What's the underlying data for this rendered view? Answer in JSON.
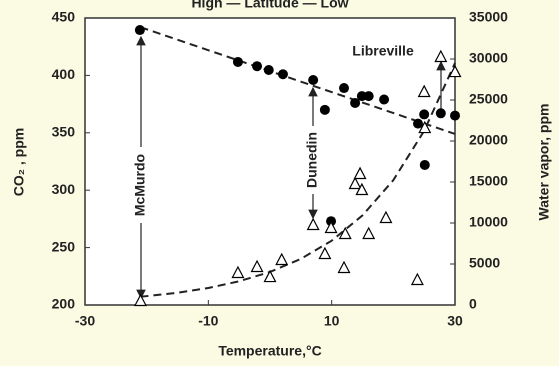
{
  "chart_data": {
    "type": "scatter",
    "title": "High — Latitude — Low",
    "x_label": "Temperature,°C",
    "y_label": "CO₂ , ppm",
    "y2_label": "Water vapor, ppm",
    "xlim": [
      -30,
      30
    ],
    "xticks": [
      -30,
      -10,
      10,
      30
    ],
    "ylim": [
      200,
      450
    ],
    "yticks": [
      200,
      250,
      300,
      350,
      400,
      450
    ],
    "y2lim": [
      0,
      35000
    ],
    "y2ticks": [
      0,
      5000,
      10000,
      15000,
      20000,
      25000,
      30000,
      35000
    ],
    "series": [
      {
        "marker": "circle",
        "color": "#000000",
        "x": [
          -21.1,
          -5.2,
          -2.1,
          -0.2,
          2.1,
          7.0,
          8.9,
          9.9,
          12.0,
          13.8,
          14.9,
          16.0,
          18.5,
          24.0,
          25.0,
          25.1,
          27.7,
          30.0
        ],
        "values": [
          439.5,
          411.7,
          408,
          404.7,
          401,
          396,
          370,
          273,
          389,
          376,
          382,
          382,
          379,
          358,
          366,
          322,
          367,
          365
        ]
      },
      {
        "marker": "triangle",
        "color": "#000000",
        "axis": "y2",
        "x": [
          -21.0,
          -5.2,
          -2.1,
          0.0,
          1.9,
          7.0,
          8.9,
          9.9,
          12.0,
          12.2,
          13.8,
          14.6,
          14.9,
          16.0,
          18.8,
          23.9,
          25.0,
          25.1,
          27.7,
          30.0
        ],
        "values": [
          490,
          3900,
          4630,
          3410,
          5490,
          9760,
          6220,
          9390,
          4510,
          8660,
          14760,
          15980,
          14020,
          8660,
          10610,
          3050,
          25980,
          21580,
          30240,
          28410
        ]
      }
    ],
    "trends": [
      {
        "axis": "y",
        "x": [
          -21,
          30
        ],
        "values": [
          442,
          349
        ]
      },
      {
        "axis": "y2",
        "x": [
          -21,
          -15,
          -10,
          -5,
          0,
          5,
          10,
          15,
          20,
          25,
          30
        ],
        "values": [
          1000,
          1490,
          2075,
          2895,
          4030,
          5625,
          7840,
          10930,
          15230,
          21240,
          29500
        ]
      }
    ],
    "annotations": [
      {
        "text": "McMurdo"
      },
      {
        "text": "Dunedin"
      },
      {
        "text": "Libreville"
      }
    ]
  }
}
